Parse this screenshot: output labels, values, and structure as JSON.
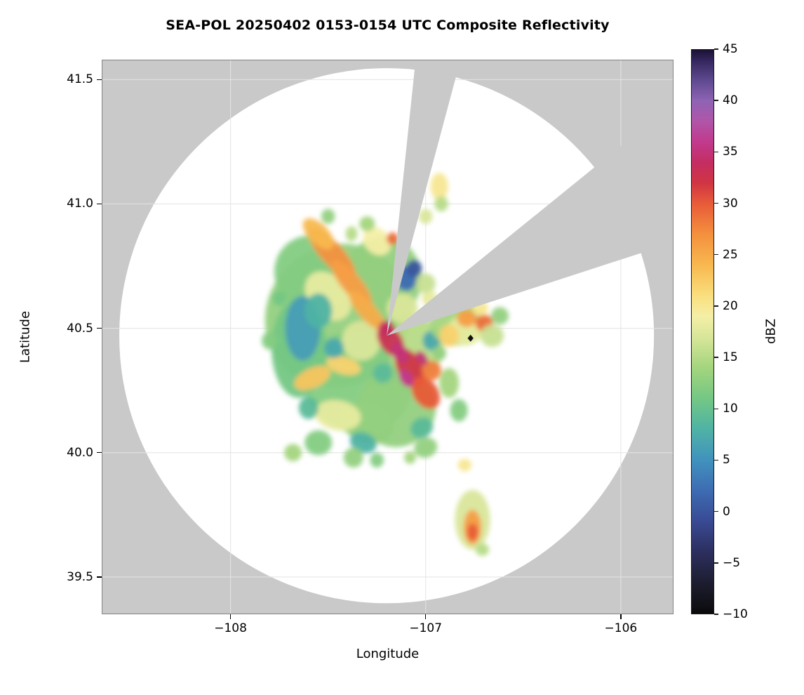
{
  "chart_data": {
    "type": "heatmap",
    "title": "SEA-POL 20250402 0153-0154 UTC Composite Reflectivity",
    "xlabel": "Longitude",
    "ylabel": "Latitude",
    "xlim": [
      -108.66,
      -105.73
    ],
    "ylim": [
      39.35,
      41.58
    ],
    "grid": true,
    "x_ticks": [
      {
        "v": -108,
        "label": "−108"
      },
      {
        "v": -107,
        "label": "−107"
      },
      {
        "v": -106,
        "label": "−106"
      }
    ],
    "y_ticks": [
      {
        "v": 39.5,
        "label": "39.5"
      },
      {
        "v": 40.0,
        "label": "40.0"
      },
      {
        "v": 40.5,
        "label": "40.5"
      },
      {
        "v": 41.0,
        "label": "41.0"
      },
      {
        "v": 41.5,
        "label": "41.5"
      }
    ],
    "colorbar": {
      "label": "dBZ",
      "min": -10,
      "max": 45,
      "ticks": [
        {
          "v": 45,
          "label": "45"
        },
        {
          "v": 40,
          "label": "40"
        },
        {
          "v": 35,
          "label": "35"
        },
        {
          "v": 30,
          "label": "30"
        },
        {
          "v": 25,
          "label": "25"
        },
        {
          "v": 20,
          "label": "20"
        },
        {
          "v": 15,
          "label": "15"
        },
        {
          "v": 10,
          "label": "10"
        },
        {
          "v": 5,
          "label": "5"
        },
        {
          "v": 0,
          "label": "0"
        },
        {
          "v": -5,
          "label": "−5"
        },
        {
          "v": -10,
          "label": "−10"
        }
      ],
      "stops": [
        {
          "v": -10,
          "c": "#0b0b0c"
        },
        {
          "v": -7,
          "c": "#1d1d30"
        },
        {
          "v": -4,
          "c": "#2c2f5e"
        },
        {
          "v": -1,
          "c": "#394a93"
        },
        {
          "v": 2,
          "c": "#3d6cb3"
        },
        {
          "v": 5,
          "c": "#4192bd"
        },
        {
          "v": 8,
          "c": "#4fb3a4"
        },
        {
          "v": 11,
          "c": "#74c784"
        },
        {
          "v": 14,
          "c": "#a4d57e"
        },
        {
          "v": 17,
          "c": "#d9e69a"
        },
        {
          "v": 19,
          "c": "#f4efa6"
        },
        {
          "v": 21,
          "c": "#f9df7e"
        },
        {
          "v": 24,
          "c": "#f8b84f"
        },
        {
          "v": 27,
          "c": "#f4903e"
        },
        {
          "v": 30,
          "c": "#e85b38"
        },
        {
          "v": 32,
          "c": "#d03543"
        },
        {
          "v": 34,
          "c": "#c42d62"
        },
        {
          "v": 36,
          "c": "#c13a8c"
        },
        {
          "v": 38,
          "c": "#b055a8"
        },
        {
          "v": 40,
          "c": "#8f63b4"
        },
        {
          "v": 42,
          "c": "#5f4a90"
        },
        {
          "v": 44,
          "c": "#33255c"
        },
        {
          "v": 45,
          "c": "#1b1233"
        }
      ]
    },
    "radar": {
      "center_lon": -107.2,
      "center_lat": 40.47,
      "coverage_radius_deg_lon": 1.37,
      "coverage_fill": "#ffffff",
      "outside_range_color": "#c9c9c9",
      "grid_color": "#e4e4e4",
      "no_data_sectors_azimuth_deg": [
        [
          6,
          15
        ],
        [
          51,
          72
        ]
      ]
    },
    "marker": {
      "lon": -106.77,
      "lat": 40.46,
      "shape": "diamond",
      "color": "#111111"
    },
    "echo_format": [
      "lon",
      "lat",
      "rx_deg",
      "ry_deg",
      "rotation_deg",
      "dbz"
    ],
    "echoes": [
      [
        -107.45,
        40.55,
        0.36,
        0.3,
        50,
        13
      ],
      [
        -107.35,
        40.28,
        0.28,
        0.2,
        30,
        12
      ],
      [
        -107.58,
        40.72,
        0.2,
        0.15,
        45,
        12
      ],
      [
        -107.22,
        40.7,
        0.2,
        0.17,
        0,
        13
      ],
      [
        -107.15,
        40.18,
        0.2,
        0.16,
        60,
        13
      ],
      [
        -107.65,
        40.42,
        0.14,
        0.2,
        0,
        11
      ],
      [
        -107.05,
        40.42,
        0.14,
        0.12,
        0,
        15
      ],
      [
        -107.3,
        40.12,
        0.14,
        0.08,
        20,
        13
      ],
      [
        -107.5,
        40.63,
        0.14,
        0.08,
        50,
        18
      ],
      [
        -107.33,
        40.45,
        0.1,
        0.08,
        0,
        17
      ],
      [
        -107.45,
        40.15,
        0.12,
        0.06,
        10,
        18
      ],
      [
        -107.12,
        40.58,
        0.08,
        0.06,
        0,
        17
      ],
      [
        -107.25,
        40.85,
        0.08,
        0.05,
        45,
        19
      ],
      [
        -107.48,
        40.8,
        0.17,
        0.045,
        48,
        27
      ],
      [
        -107.38,
        40.68,
        0.15,
        0.04,
        50,
        26
      ],
      [
        -107.3,
        40.57,
        0.13,
        0.035,
        48,
        25
      ],
      [
        -107.55,
        40.88,
        0.1,
        0.04,
        45,
        24
      ],
      [
        -107.58,
        40.3,
        0.1,
        0.04,
        -25,
        23
      ],
      [
        -107.42,
        40.35,
        0.09,
        0.035,
        15,
        22
      ],
      [
        -107.18,
        40.45,
        0.09,
        0.045,
        55,
        33
      ],
      [
        -107.08,
        40.34,
        0.11,
        0.05,
        60,
        32
      ],
      [
        -107.0,
        40.24,
        0.09,
        0.05,
        55,
        30
      ],
      [
        -107.13,
        40.4,
        0.06,
        0.03,
        60,
        35
      ],
      [
        -106.97,
        40.33,
        0.05,
        0.04,
        0,
        28
      ],
      [
        -107.2,
        40.5,
        0.04,
        0.03,
        0,
        34
      ],
      [
        -107.1,
        40.3,
        0.05,
        0.025,
        60,
        36
      ],
      [
        -107.02,
        40.38,
        0.04,
        0.02,
        55,
        35
      ],
      [
        -107.63,
        40.5,
        0.09,
        0.13,
        0,
        6
      ],
      [
        -107.55,
        40.57,
        0.07,
        0.07,
        0,
        8
      ],
      [
        -107.1,
        40.7,
        0.055,
        0.05,
        0,
        2
      ],
      [
        -107.06,
        40.74,
        0.04,
        0.035,
        0,
        0
      ],
      [
        -107.32,
        40.04,
        0.07,
        0.04,
        20,
        8
      ],
      [
        -107.6,
        40.18,
        0.05,
        0.045,
        0,
        9
      ],
      [
        -106.97,
        40.45,
        0.045,
        0.04,
        0,
        7
      ],
      [
        -107.02,
        40.1,
        0.06,
        0.04,
        -30,
        9
      ],
      [
        -107.47,
        40.42,
        0.05,
        0.04,
        0,
        7
      ],
      [
        -107.22,
        40.32,
        0.05,
        0.04,
        45,
        9
      ],
      [
        -107.55,
        40.04,
        0.07,
        0.05,
        0,
        12
      ],
      [
        -107.68,
        40.0,
        0.045,
        0.035,
        0,
        14
      ],
      [
        -107.37,
        39.98,
        0.05,
        0.04,
        0,
        13
      ],
      [
        -107.0,
        40.02,
        0.06,
        0.04,
        -20,
        13
      ],
      [
        -106.88,
        40.28,
        0.05,
        0.06,
        0,
        14
      ],
      [
        -106.83,
        40.17,
        0.045,
        0.045,
        0,
        12
      ],
      [
        -106.84,
        40.52,
        0.14,
        0.09,
        0,
        14
      ],
      [
        -106.8,
        40.49,
        0.09,
        0.06,
        0,
        18
      ],
      [
        -106.79,
        40.54,
        0.05,
        0.035,
        0,
        26
      ],
      [
        -106.7,
        40.52,
        0.045,
        0.035,
        0,
        29
      ],
      [
        -106.88,
        40.47,
        0.05,
        0.045,
        0,
        22
      ],
      [
        -106.66,
        40.47,
        0.06,
        0.045,
        0,
        16
      ],
      [
        -106.62,
        40.55,
        0.045,
        0.035,
        0,
        13
      ],
      [
        -106.72,
        40.58,
        0.04,
        0.03,
        0,
        20
      ],
      [
        -107.0,
        40.68,
        0.05,
        0.04,
        0,
        16
      ],
      [
        -106.98,
        40.62,
        0.04,
        0.03,
        0,
        18
      ],
      [
        -106.93,
        41.07,
        0.045,
        0.055,
        0,
        20
      ],
      [
        -106.92,
        41.0,
        0.035,
        0.03,
        0,
        15
      ],
      [
        -107.0,
        40.95,
        0.035,
        0.03,
        0,
        17
      ],
      [
        -107.17,
        40.86,
        0.03,
        0.025,
        0,
        29
      ],
      [
        -107.3,
        40.92,
        0.04,
        0.03,
        0,
        14
      ],
      [
        -106.76,
        39.73,
        0.09,
        0.12,
        0,
        17
      ],
      [
        -106.76,
        39.7,
        0.045,
        0.07,
        0,
        26
      ],
      [
        -106.76,
        39.68,
        0.028,
        0.035,
        0,
        30
      ],
      [
        -106.8,
        39.95,
        0.035,
        0.025,
        0,
        20
      ],
      [
        -106.71,
        39.61,
        0.035,
        0.025,
        0,
        15
      ],
      [
        -107.8,
        40.45,
        0.04,
        0.035,
        0,
        12
      ],
      [
        -107.75,
        40.62,
        0.035,
        0.03,
        0,
        11
      ],
      [
        -107.5,
        40.95,
        0.035,
        0.03,
        0,
        13
      ],
      [
        -107.38,
        40.88,
        0.03,
        0.03,
        0,
        15
      ],
      [
        -106.93,
        40.4,
        0.035,
        0.03,
        0,
        13
      ],
      [
        -107.25,
        39.97,
        0.035,
        0.03,
        0,
        12
      ],
      [
        -107.08,
        39.98,
        0.03,
        0.025,
        0,
        14
      ]
    ]
  }
}
